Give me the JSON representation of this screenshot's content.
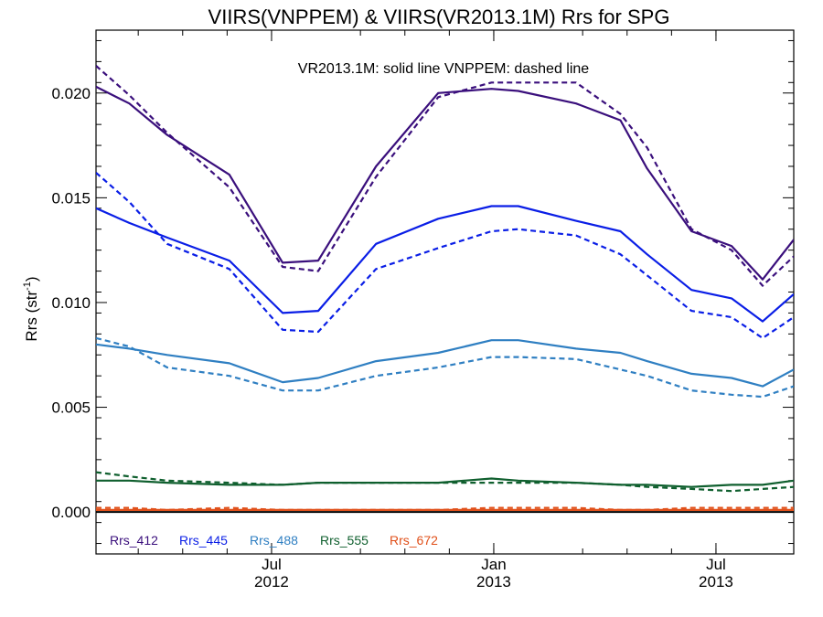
{
  "chart_data": {
    "type": "line",
    "title": "VIIRS(VNPPEM) & VIIRS(VR2013.1M)  Rrs for SPG",
    "annotation": "VR2013.1M: solid line   VNPPEM: dashed line",
    "ylabel": "Rrs (str",
    "ylabel_sup": "-1",
    "ylabel_close": ")",
    "xlabel": "",
    "ylim": [
      -0.002,
      0.023
    ],
    "xlim": [
      0,
      15.7
    ],
    "yticks": [
      {
        "value": 0.0,
        "label": "0.000"
      },
      {
        "value": 0.005,
        "label": "0.005"
      },
      {
        "value": 0.01,
        "label": "0.010"
      },
      {
        "value": 0.015,
        "label": "0.015"
      },
      {
        "value": 0.02,
        "label": "0.020"
      }
    ],
    "xticks": [
      {
        "value": 3.95,
        "label": "Jul",
        "year": "2012"
      },
      {
        "value": 8.95,
        "label": "Jan",
        "year": "2013"
      },
      {
        "value": 13.95,
        "label": "Jul",
        "year": "2013"
      }
    ],
    "x": [
      0,
      0.75,
      1.6,
      3.0,
      4.2,
      5.0,
      6.3,
      7.7,
      8.9,
      9.5,
      10.8,
      11.8,
      12.4,
      13.4,
      14.3,
      15.0,
      15.7
    ],
    "series": [
      {
        "name": "Rrs_412",
        "color": "#3a0f7c",
        "style": "solid",
        "values": [
          0.0203,
          0.0195,
          0.018,
          0.0161,
          0.0119,
          0.012,
          0.0165,
          0.02,
          0.0202,
          0.0201,
          0.0195,
          0.0187,
          0.0164,
          0.0134,
          0.0127,
          0.0111,
          0.013
        ]
      },
      {
        "name": "Rrs_412",
        "color": "#3a0f7c",
        "style": "dashed",
        "values": [
          0.0213,
          0.0199,
          0.0181,
          0.0155,
          0.0117,
          0.0115,
          0.016,
          0.0198,
          0.0205,
          0.0205,
          0.0205,
          0.019,
          0.0174,
          0.0135,
          0.0125,
          0.0108,
          0.0122
        ]
      },
      {
        "name": "Rrs_445",
        "color": "#0a1ee6",
        "style": "solid",
        "values": [
          0.0145,
          0.0138,
          0.0131,
          0.012,
          0.0095,
          0.0096,
          0.0128,
          0.014,
          0.0146,
          0.0146,
          0.0139,
          0.0134,
          0.0123,
          0.0106,
          0.0102,
          0.0091,
          0.0104
        ]
      },
      {
        "name": "Rrs_445",
        "color": "#0a1ee6",
        "style": "dashed",
        "values": [
          0.0162,
          0.0148,
          0.0128,
          0.0116,
          0.0087,
          0.0086,
          0.0116,
          0.0126,
          0.0134,
          0.0135,
          0.0132,
          0.0123,
          0.0113,
          0.0096,
          0.0093,
          0.0083,
          0.0093
        ]
      },
      {
        "name": "Rrs_488",
        "color": "#2f7fc2",
        "style": "solid",
        "values": [
          0.008,
          0.0078,
          0.0075,
          0.0071,
          0.0062,
          0.0064,
          0.0072,
          0.0076,
          0.0082,
          0.0082,
          0.0078,
          0.0076,
          0.0072,
          0.0066,
          0.0064,
          0.006,
          0.0068
        ]
      },
      {
        "name": "Rrs_488",
        "color": "#2f7fc2",
        "style": "dashed",
        "values": [
          0.0083,
          0.0079,
          0.0069,
          0.0065,
          0.0058,
          0.0058,
          0.0065,
          0.0069,
          0.0074,
          0.0074,
          0.0073,
          0.0068,
          0.0065,
          0.0058,
          0.0056,
          0.0055,
          0.006
        ]
      },
      {
        "name": "Rrs_555",
        "color": "#0f5f2e",
        "style": "solid",
        "values": [
          0.0015,
          0.0015,
          0.0014,
          0.0013,
          0.0013,
          0.0014,
          0.0014,
          0.0014,
          0.0016,
          0.0015,
          0.0014,
          0.0013,
          0.0013,
          0.0012,
          0.0013,
          0.0013,
          0.0015
        ]
      },
      {
        "name": "Rrs_555",
        "color": "#0f5f2e",
        "style": "dashed",
        "values": [
          0.0019,
          0.0017,
          0.0015,
          0.0014,
          0.0013,
          0.0014,
          0.0014,
          0.0014,
          0.0014,
          0.0014,
          0.0014,
          0.0013,
          0.0012,
          0.0011,
          0.001,
          0.0011,
          0.0012
        ]
      },
      {
        "name": "Rrs_672",
        "color": "#e0501a",
        "style": "solid",
        "values": [
          0.0001,
          0.0001,
          0.0001,
          0.0001,
          0.0001,
          0.0001,
          0.0001,
          0.0001,
          0.0001,
          0.0001,
          0.0001,
          0.0001,
          0.0001,
          0.0001,
          0.0001,
          0.0001,
          0.0001
        ]
      },
      {
        "name": "Rrs_672",
        "color": "#e0501a",
        "style": "dashed",
        "values": [
          0.0002,
          0.0002,
          0.0001,
          0.0002,
          0.0001,
          0.0001,
          0.0001,
          0.0001,
          0.0002,
          0.0002,
          0.0002,
          0.0001,
          0.0001,
          0.0002,
          0.0002,
          0.0002,
          0.0002
        ]
      }
    ],
    "zero_line_color": "#000000",
    "legend": [
      {
        "label": "Rrs_412",
        "color": "#3a0f7c"
      },
      {
        "label": "Rrs_445",
        "color": "#0a1ee6"
      },
      {
        "label": "Rrs_488",
        "color": "#2f7fc2"
      },
      {
        "label": "Rrs_555",
        "color": "#0f5f2e"
      },
      {
        "label": "Rrs_672",
        "color": "#e0501a"
      }
    ],
    "legend_placement": "bottom-left inside",
    "grid": false
  }
}
